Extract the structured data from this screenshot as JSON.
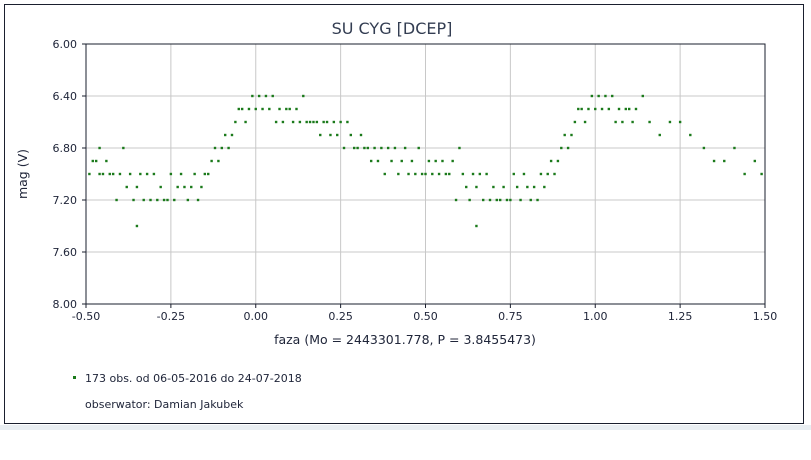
{
  "chart_data": {
    "type": "scatter",
    "title": "SU CYG [DCEP]",
    "xlabel": "faza (Mo = 2443301.778, P = 3.8455473)",
    "ylabel": "mag (V)",
    "xlim": [
      -0.5,
      1.5
    ],
    "ylim": [
      6.0,
      8.0
    ],
    "y_inverted": true,
    "grid": true,
    "x_ticks": [
      "-0.50",
      "-0.25",
      "0.00",
      "0.25",
      "0.50",
      "0.75",
      "1.00",
      "1.25",
      "1.50"
    ],
    "y_ticks": [
      "6.00",
      "6.40",
      "6.80",
      "7.20",
      "7.60",
      "8.00"
    ],
    "legend_position": "bottom-left",
    "legend_entry": "173 obs. od 06-05-2016 do 24-07-2018",
    "observer_text": "obserwator: Damian Jakubek",
    "marker_color": "#1b7a1b",
    "points": [
      [
        -0.49,
        7.0
      ],
      [
        -0.48,
        6.9
      ],
      [
        -0.47,
        6.9
      ],
      [
        -0.46,
        6.8
      ],
      [
        -0.46,
        7.0
      ],
      [
        -0.45,
        7.0
      ],
      [
        -0.44,
        6.9
      ],
      [
        -0.43,
        7.0
      ],
      [
        -0.42,
        7.0
      ],
      [
        -0.41,
        7.2
      ],
      [
        -0.4,
        7.0
      ],
      [
        -0.39,
        6.8
      ],
      [
        -0.38,
        7.1
      ],
      [
        -0.37,
        7.0
      ],
      [
        -0.36,
        7.2
      ],
      [
        -0.35,
        7.1
      ],
      [
        -0.35,
        7.4
      ],
      [
        -0.34,
        7.0
      ],
      [
        -0.33,
        7.2
      ],
      [
        -0.32,
        7.0
      ],
      [
        -0.31,
        7.2
      ],
      [
        -0.3,
        7.0
      ],
      [
        -0.29,
        7.2
      ],
      [
        -0.28,
        7.1
      ],
      [
        -0.27,
        7.2
      ],
      [
        -0.26,
        7.2
      ],
      [
        -0.25,
        7.0
      ],
      [
        -0.24,
        7.2
      ],
      [
        -0.23,
        7.1
      ],
      [
        -0.22,
        7.0
      ],
      [
        -0.21,
        7.1
      ],
      [
        -0.2,
        7.2
      ],
      [
        -0.19,
        7.1
      ],
      [
        -0.18,
        7.0
      ],
      [
        -0.17,
        7.2
      ],
      [
        -0.16,
        7.1
      ],
      [
        -0.15,
        7.0
      ],
      [
        -0.14,
        7.0
      ],
      [
        -0.13,
        6.9
      ],
      [
        -0.12,
        6.8
      ],
      [
        -0.11,
        6.9
      ],
      [
        -0.1,
        6.8
      ],
      [
        -0.09,
        6.7
      ],
      [
        -0.08,
        6.8
      ],
      [
        -0.07,
        6.7
      ],
      [
        -0.06,
        6.6
      ],
      [
        -0.05,
        6.5
      ],
      [
        -0.04,
        6.5
      ],
      [
        -0.03,
        6.6
      ],
      [
        -0.02,
        6.5
      ],
      [
        -0.01,
        6.4
      ],
      [
        0.0,
        6.5
      ],
      [
        0.01,
        6.4
      ],
      [
        0.02,
        6.5
      ],
      [
        0.03,
        6.4
      ],
      [
        0.04,
        6.5
      ],
      [
        0.05,
        6.4
      ],
      [
        0.06,
        6.6
      ],
      [
        0.07,
        6.5
      ],
      [
        0.08,
        6.6
      ],
      [
        0.09,
        6.5
      ],
      [
        0.1,
        6.5
      ],
      [
        0.11,
        6.6
      ],
      [
        0.12,
        6.5
      ],
      [
        0.13,
        6.6
      ],
      [
        0.14,
        6.4
      ],
      [
        0.15,
        6.6
      ],
      [
        0.16,
        6.6
      ],
      [
        0.17,
        6.6
      ],
      [
        0.18,
        6.6
      ],
      [
        0.19,
        6.7
      ],
      [
        0.2,
        6.6
      ],
      [
        0.21,
        6.6
      ],
      [
        0.22,
        6.7
      ],
      [
        0.23,
        6.6
      ],
      [
        0.24,
        6.7
      ],
      [
        0.25,
        6.6
      ],
      [
        0.26,
        6.8
      ],
      [
        0.27,
        6.6
      ],
      [
        0.28,
        6.7
      ],
      [
        0.29,
        6.8
      ],
      [
        0.3,
        6.8
      ],
      [
        0.31,
        6.7
      ],
      [
        0.32,
        6.8
      ],
      [
        0.33,
        6.8
      ],
      [
        0.34,
        6.9
      ],
      [
        0.35,
        6.8
      ],
      [
        0.36,
        6.9
      ],
      [
        0.37,
        6.8
      ],
      [
        0.38,
        7.0
      ],
      [
        0.39,
        6.8
      ],
      [
        0.4,
        6.9
      ],
      [
        0.41,
        6.8
      ],
      [
        0.42,
        7.0
      ],
      [
        0.43,
        6.9
      ],
      [
        0.44,
        6.8
      ],
      [
        0.45,
        7.0
      ],
      [
        0.46,
        6.9
      ],
      [
        0.47,
        7.0
      ],
      [
        0.48,
        6.8
      ],
      [
        0.49,
        7.0
      ],
      [
        0.5,
        7.0
      ],
      [
        0.51,
        6.9
      ],
      [
        0.52,
        7.0
      ],
      [
        0.53,
        6.9
      ],
      [
        0.54,
        7.0
      ],
      [
        0.55,
        6.9
      ],
      [
        0.56,
        7.0
      ],
      [
        0.57,
        7.0
      ],
      [
        0.58,
        6.9
      ],
      [
        0.59,
        7.2
      ],
      [
        0.6,
        6.8
      ],
      [
        0.61,
        7.0
      ],
      [
        0.62,
        7.1
      ],
      [
        0.63,
        7.2
      ],
      [
        0.64,
        7.0
      ],
      [
        0.65,
        7.1
      ],
      [
        0.65,
        7.4
      ],
      [
        0.66,
        7.0
      ],
      [
        0.67,
        7.2
      ],
      [
        0.68,
        7.0
      ],
      [
        0.69,
        7.2
      ],
      [
        0.7,
        7.1
      ],
      [
        0.71,
        7.2
      ],
      [
        0.72,
        7.2
      ],
      [
        0.73,
        7.1
      ],
      [
        0.74,
        7.2
      ],
      [
        0.75,
        7.2
      ],
      [
        0.76,
        7.0
      ],
      [
        0.77,
        7.1
      ],
      [
        0.78,
        7.2
      ],
      [
        0.79,
        7.0
      ],
      [
        0.8,
        7.1
      ],
      [
        0.81,
        7.2
      ],
      [
        0.82,
        7.1
      ],
      [
        0.83,
        7.2
      ],
      [
        0.84,
        7.0
      ],
      [
        0.85,
        7.1
      ],
      [
        0.86,
        7.0
      ],
      [
        0.87,
        6.9
      ],
      [
        0.88,
        7.0
      ],
      [
        0.89,
        6.9
      ],
      [
        0.9,
        6.8
      ],
      [
        0.91,
        6.7
      ],
      [
        0.92,
        6.8
      ],
      [
        0.93,
        6.7
      ],
      [
        0.94,
        6.6
      ],
      [
        0.95,
        6.5
      ],
      [
        0.96,
        6.5
      ],
      [
        0.97,
        6.6
      ],
      [
        0.98,
        6.5
      ],
      [
        0.99,
        6.4
      ],
      [
        1.0,
        6.5
      ],
      [
        1.01,
        6.4
      ],
      [
        1.02,
        6.5
      ],
      [
        1.03,
        6.4
      ],
      [
        1.04,
        6.5
      ],
      [
        1.05,
        6.4
      ],
      [
        1.06,
        6.6
      ],
      [
        1.07,
        6.5
      ],
      [
        1.08,
        6.6
      ],
      [
        1.09,
        6.5
      ],
      [
        1.1,
        6.5
      ],
      [
        1.11,
        6.6
      ],
      [
        1.12,
        6.5
      ],
      [
        1.14,
        6.4
      ],
      [
        1.16,
        6.6
      ],
      [
        1.19,
        6.7
      ],
      [
        1.22,
        6.6
      ],
      [
        1.25,
        6.6
      ],
      [
        1.28,
        6.7
      ],
      [
        1.32,
        6.8
      ],
      [
        1.35,
        6.9
      ],
      [
        1.38,
        6.9
      ],
      [
        1.41,
        6.8
      ],
      [
        1.44,
        7.0
      ],
      [
        1.47,
        6.9
      ],
      [
        1.49,
        7.0
      ]
    ]
  }
}
